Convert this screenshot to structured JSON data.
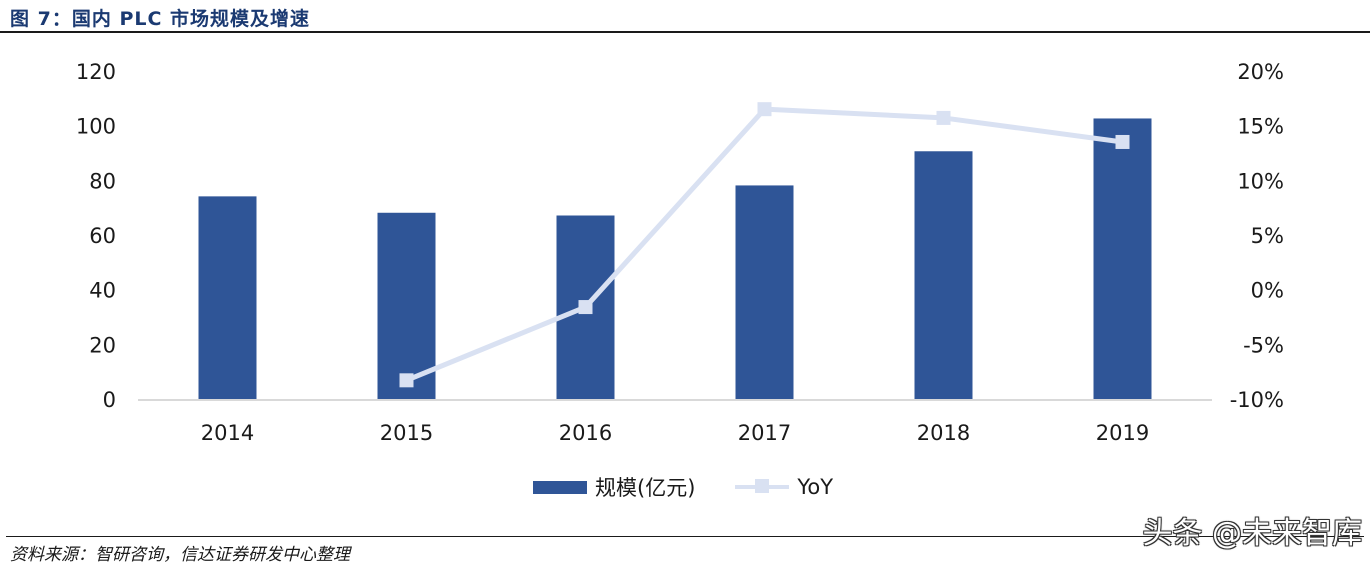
{
  "figure": {
    "title": "图 7：国内 PLC 市场规模及增速",
    "source": "资料来源：智研咨询，信达证券研发中心整理",
    "watermark": "头条 @未来智库"
  },
  "legend": {
    "bar_label": "规模(亿元)",
    "line_label": "YoY"
  },
  "colors": {
    "bar": "#2f5597",
    "line": "#d9e1f2",
    "title": "#1b3a72",
    "axis": "#d9d9d9"
  },
  "chart_data": {
    "type": "bar",
    "categories": [
      "2014",
      "2015",
      "2016",
      "2017",
      "2018",
      "2019"
    ],
    "series": [
      {
        "name": "规模(亿元)",
        "type": "bar",
        "axis": "left",
        "values": [
          74.5,
          68.5,
          67.5,
          78.5,
          91,
          103
        ]
      },
      {
        "name": "YoY",
        "type": "line",
        "axis": "right",
        "values": [
          null,
          -8.2,
          -1.5,
          16.6,
          15.8,
          13.6
        ]
      }
    ],
    "ylim_left": [
      0,
      120
    ],
    "yticks_left": [
      "120",
      "100",
      "80",
      "60",
      "40",
      "20",
      "0"
    ],
    "ylim_right": [
      -10,
      20
    ],
    "yticks_right": [
      "20%",
      "15%",
      "10%",
      "5%",
      "0%",
      "-5%",
      "-10%"
    ],
    "grid": false,
    "legend_position": "bottom"
  }
}
